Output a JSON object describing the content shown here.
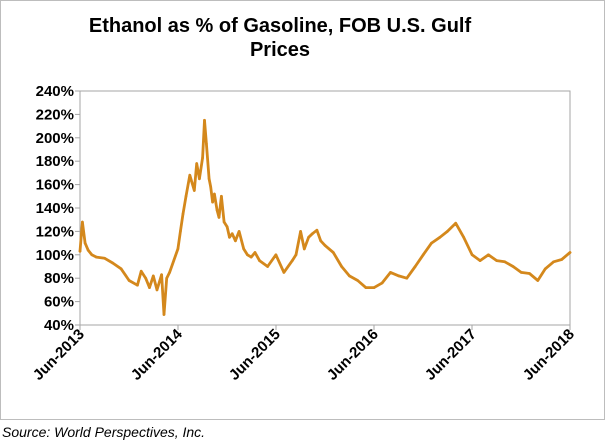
{
  "chart_data": {
    "type": "line",
    "title_line1": "Ethanol as %  of Gasoline, FOB U.S. Gulf",
    "title_line2": "Prices",
    "xlabel": "",
    "ylabel": "",
    "ylim": [
      40,
      240
    ],
    "y_ticks": [
      "40%",
      "60%",
      "80%",
      "100%",
      "120%",
      "140%",
      "160%",
      "180%",
      "200%",
      "220%",
      "240%"
    ],
    "x_tick_labels": [
      "Jun-2013",
      "Jun-2014",
      "Jun-2015",
      "Jun-2016",
      "Jun-2017",
      "Jun-2018"
    ],
    "xlim": [
      "2013-06",
      "2018-06"
    ],
    "grid": false,
    "legend": "none",
    "series": [
      {
        "color": "#D4881C",
        "x": [
          "2013-06-01",
          "2013-06-10",
          "2013-06-20",
          "2013-07-01",
          "2013-07-15",
          "2013-08-01",
          "2013-09-01",
          "2013-10-01",
          "2013-11-01",
          "2013-12-01",
          "2014-01-01",
          "2014-01-15",
          "2014-02-01",
          "2014-02-15",
          "2014-03-01",
          "2014-03-15",
          "2014-04-01",
          "2014-04-10",
          "2014-04-20",
          "2014-05-01",
          "2014-06-01",
          "2014-06-10",
          "2014-06-20",
          "2014-07-01",
          "2014-07-15",
          "2014-08-01",
          "2014-08-10",
          "2014-08-20",
          "2014-09-01",
          "2014-09-08",
          "2014-09-15",
          "2014-09-25",
          "2014-10-01",
          "2014-10-08",
          "2014-10-15",
          "2014-10-25",
          "2014-11-01",
          "2014-11-10",
          "2014-11-20",
          "2014-12-01",
          "2014-12-10",
          "2014-12-20",
          "2015-01-01",
          "2015-01-15",
          "2015-02-01",
          "2015-02-15",
          "2015-03-01",
          "2015-03-15",
          "2015-04-01",
          "2015-05-01",
          "2015-06-01",
          "2015-07-01",
          "2015-08-01",
          "2015-08-15",
          "2015-09-01",
          "2015-09-15",
          "2015-10-01",
          "2015-10-15",
          "2015-11-01",
          "2015-11-15",
          "2015-12-01",
          "2016-01-01",
          "2016-02-01",
          "2016-03-01",
          "2016-04-01",
          "2016-05-01",
          "2016-06-01",
          "2016-07-01",
          "2016-08-01",
          "2016-09-01",
          "2016-10-01",
          "2016-11-01",
          "2016-12-01",
          "2017-01-01",
          "2017-02-01",
          "2017-03-01",
          "2017-04-01",
          "2017-05-01",
          "2017-06-01",
          "2017-07-01",
          "2017-08-01",
          "2017-09-01",
          "2017-10-01",
          "2017-11-01",
          "2017-12-01",
          "2018-01-01",
          "2018-02-01",
          "2018-03-01",
          "2018-04-01",
          "2018-05-01",
          "2018-06-01"
        ],
        "values": [
          103,
          128,
          110,
          104,
          100,
          98,
          97,
          93,
          88,
          78,
          74,
          86,
          80,
          72,
          82,
          70,
          83,
          49,
          80,
          85,
          105,
          120,
          135,
          150,
          168,
          155,
          178,
          165,
          183,
          215,
          195,
          165,
          158,
          145,
          152,
          138,
          132,
          150,
          128,
          124,
          115,
          118,
          112,
          120,
          105,
          100,
          98,
          102,
          95,
          90,
          100,
          85,
          95,
          100,
          120,
          105,
          115,
          118,
          121,
          112,
          108,
          102,
          90,
          82,
          78,
          72,
          72,
          76,
          85,
          82,
          80,
          90,
          100,
          110,
          115,
          120,
          127,
          115,
          100,
          95,
          100,
          95,
          94,
          90,
          85,
          84,
          78,
          88,
          94,
          96,
          102
        ]
      }
    ]
  },
  "source_text": "Source: World Perspectives, Inc."
}
